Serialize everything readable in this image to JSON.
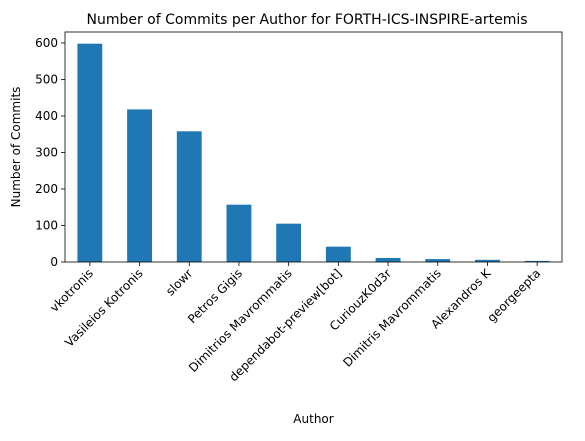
{
  "chart_data": {
    "type": "bar",
    "title": "Number of Commits per Author for FORTH-ICS-INSPIRE-artemis",
    "xlabel": "Author",
    "ylabel": "Number of Commits",
    "categories": [
      "vkotronis",
      "Vasileios Kotronis",
      "slowr",
      "Petros Gigis",
      "Dimitrios Mavrommatis",
      "dependabot-preview[bot]",
      "CuriouzK0d3r",
      "Dimitris Mavrommatis",
      "Alexandros K",
      "georgeepta"
    ],
    "values": [
      598,
      418,
      358,
      157,
      105,
      42,
      11,
      8,
      6,
      3
    ],
    "ylim": [
      0,
      630
    ],
    "yticks": [
      0,
      100,
      200,
      300,
      400,
      500,
      600
    ],
    "grid": false,
    "bar_color": "#1f77b4"
  }
}
